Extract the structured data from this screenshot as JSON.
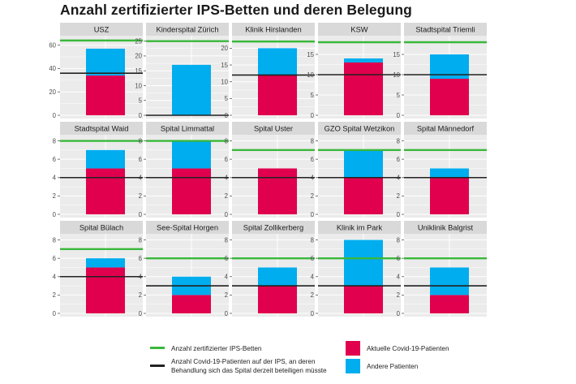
{
  "chart_data": {
    "type": "bar",
    "title": "Anzahl zertifizierter IPS-Betten und deren Belegung",
    "colors": {
      "covid": "#e0004d",
      "other": "#00adef",
      "certified_line": "#39b83a",
      "needed_line": "#222222",
      "panel_bg": "#ebebeb",
      "strip_bg": "#d9d9d9",
      "grid": "#ffffff"
    },
    "legend": [
      {
        "key": "certified",
        "label": "Anzahl zertifizierter IPS-Betten"
      },
      {
        "key": "needed",
        "label": "Anzahl Covid-19-Patienten auf der IPS, an deren Behandlung sich das Spital derzeit beteiligen müsste"
      },
      {
        "key": "covid",
        "label": "Aktuelle Covid-19-Patienten"
      },
      {
        "key": "other",
        "label": "Andere Patienten"
      }
    ],
    "panels": [
      {
        "name": "USZ",
        "covid": 34,
        "other": 23,
        "certified": 64,
        "needed": 36,
        "ylim": [
          0,
          66
        ],
        "ticks": [
          0,
          20,
          40,
          60
        ]
      },
      {
        "name": "Kinderspital Zürich",
        "covid": 0,
        "other": 17,
        "certified": 25,
        "needed": 0,
        "ylim": [
          0,
          26
        ],
        "ticks": [
          0,
          5,
          10,
          15,
          20,
          25
        ]
      },
      {
        "name": "Klinik Hirslanden",
        "covid": 12,
        "other": 8,
        "certified": 22,
        "needed": 12,
        "ylim": [
          0,
          23
        ],
        "ticks": [
          0,
          5,
          10,
          15,
          20
        ]
      },
      {
        "name": "KSW",
        "covid": 13,
        "other": 1,
        "certified": 18,
        "needed": 10,
        "ylim": [
          0,
          19
        ],
        "ticks": [
          0,
          5,
          10,
          15
        ]
      },
      {
        "name": "Stadtspital Triemli",
        "covid": 9,
        "other": 6,
        "certified": 18,
        "needed": 10,
        "ylim": [
          0,
          19
        ],
        "ticks": [
          0,
          5,
          10,
          15
        ]
      },
      {
        "name": "Stadtspital Waid",
        "covid": 5,
        "other": 2,
        "certified": 8,
        "needed": 4,
        "ylim": [
          0,
          8.4
        ],
        "ticks": [
          0,
          2,
          4,
          6,
          8
        ]
      },
      {
        "name": "Spital Limmattal",
        "covid": 5,
        "other": 3,
        "certified": 8,
        "needed": 4,
        "ylim": [
          0,
          8.4
        ],
        "ticks": [
          0,
          2,
          4,
          6,
          8
        ]
      },
      {
        "name": "Spital Uster",
        "covid": 5,
        "other": 0,
        "certified": 7,
        "needed": 4,
        "ylim": [
          0,
          8.4
        ],
        "ticks": [
          0,
          2,
          4,
          6,
          8
        ]
      },
      {
        "name": "GZO Spital Wetzikon",
        "covid": 4,
        "other": 3,
        "certified": 7,
        "needed": 4,
        "ylim": [
          0,
          8.4
        ],
        "ticks": [
          0,
          2,
          4,
          6,
          8
        ]
      },
      {
        "name": "Spital Männedorf",
        "covid": 4,
        "other": 1,
        "certified": 7,
        "needed": 4,
        "ylim": [
          0,
          8.4
        ],
        "ticks": [
          0,
          2,
          4,
          6,
          8
        ]
      },
      {
        "name": "Spital Bülach",
        "covid": 5,
        "other": 1,
        "certified": 7,
        "needed": 4,
        "ylim": [
          0,
          8.4
        ],
        "ticks": [
          0,
          2,
          4,
          6,
          8
        ]
      },
      {
        "name": "See-Spital Horgen",
        "covid": 2,
        "other": 2,
        "certified": 6,
        "needed": 3,
        "ylim": [
          0,
          8.4
        ],
        "ticks": [
          0,
          2,
          4,
          6,
          8
        ]
      },
      {
        "name": "Spital Zollikerberg",
        "covid": 3,
        "other": 2,
        "certified": 6,
        "needed": 3,
        "ylim": [
          0,
          8.4
        ],
        "ticks": [
          0,
          2,
          4,
          6,
          8
        ]
      },
      {
        "name": "Klinik im Park",
        "covid": 3,
        "other": 5,
        "certified": 6,
        "needed": 3,
        "ylim": [
          0,
          8.4
        ],
        "ticks": [
          0,
          2,
          4,
          6,
          8
        ]
      },
      {
        "name": "Uniklinik Balgrist",
        "covid": 2,
        "other": 3,
        "certified": 6,
        "needed": 3,
        "ylim": [
          0,
          8.4
        ],
        "ticks": [
          0,
          2,
          4,
          6,
          8
        ]
      }
    ]
  }
}
